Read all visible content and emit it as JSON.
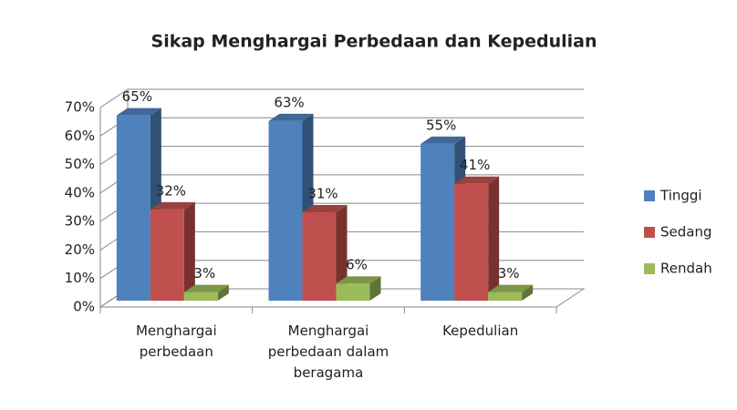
{
  "chart_data": {
    "type": "bar3d",
    "title": "Sikap Menghargai Perbedaan dan Kepedulian",
    "categories": [
      "Menghargai perbedaan",
      "Menghargai perbedaan dalam beragama",
      "Kepedulian"
    ],
    "series": [
      {
        "name": "Tinggi",
        "color": "#4f81bd",
        "values": [
          65,
          63,
          55
        ],
        "value_labels": [
          "65%",
          "63%",
          "55%"
        ]
      },
      {
        "name": "Sedang",
        "color": "#c0504d",
        "values": [
          32,
          31,
          41
        ],
        "value_labels": [
          "32%",
          "31%",
          "41%"
        ]
      },
      {
        "name": "Rendah",
        "color": "#9bbb59",
        "values": [
          3,
          6,
          3
        ],
        "value_labels": [
          "3%",
          "6%",
          "3%"
        ]
      }
    ],
    "ylim": [
      0,
      70
    ],
    "yticks": [
      {
        "value": 0,
        "label": "0%"
      },
      {
        "value": 10,
        "label": "10%"
      },
      {
        "value": 20,
        "label": "20%"
      },
      {
        "value": 30,
        "label": "30%"
      },
      {
        "value": 40,
        "label": "40%"
      },
      {
        "value": 50,
        "label": "50%"
      },
      {
        "value": 60,
        "label": "60%"
      },
      {
        "value": 70,
        "label": "70%"
      }
    ],
    "grid": true,
    "legend": "right"
  }
}
